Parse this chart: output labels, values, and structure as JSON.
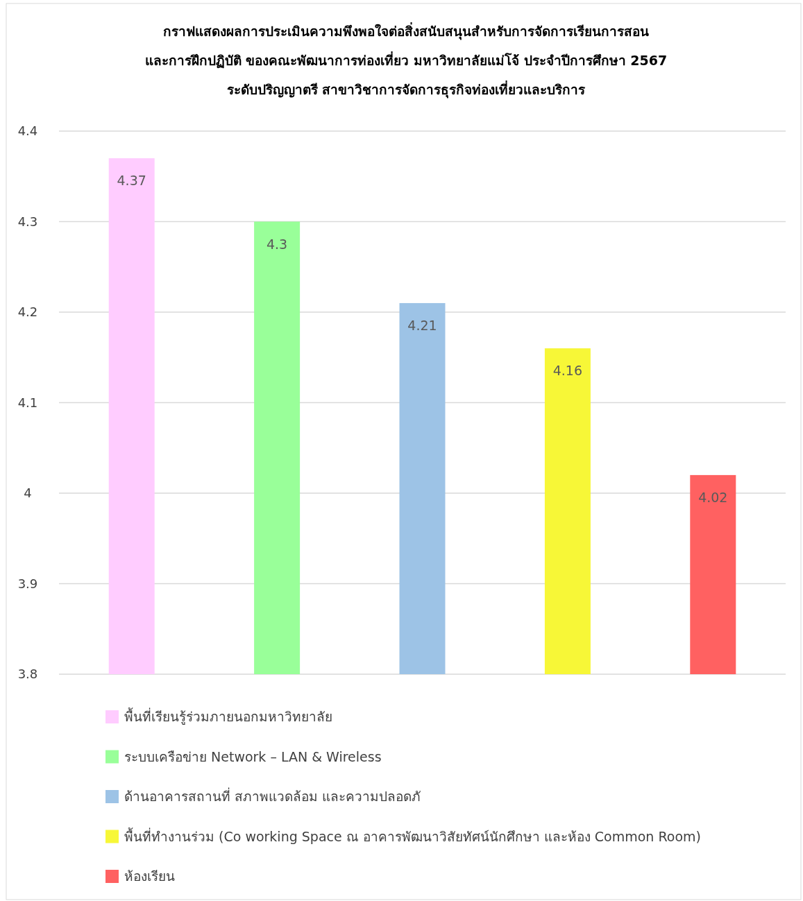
{
  "chart_data": {
    "type": "bar",
    "title": "กราฟแสดงผลการประเมินความพึงพอใจต่อสิ่งสนับสนุนสำหรับการจัดการเรียนการสอน\nและการฝึกปฏิบัติ ของคณะพัฒนาการท่องเที่ยว มหาวิทยาลัยแม่โจ้ ประจำปีการศึกษา 2567\nระดับปริญญาตรี สาขาวิชาการจัดการธุรกิจท่องเที่ยวและบริการ",
    "categories": [
      null,
      null,
      null,
      null,
      null
    ],
    "series": [
      {
        "name": "พื้นที่เรียนรู้ร่วมภายนอกมหาวิทยาลัย",
        "color": "#ffccff",
        "values": [
          4.37,
          null,
          null,
          null,
          null
        ]
      },
      {
        "name": "ระบบเครือข่าย Network – LAN & Wireless",
        "color": "#99ff99",
        "values": [
          null,
          4.3,
          null,
          null,
          null
        ]
      },
      {
        "name": "ด้านอาคารสถานที่ สภาพแวดล้อม และความปลอดภั",
        "color": "#9dc3e6",
        "values": [
          null,
          null,
          4.21,
          null,
          null
        ]
      },
      {
        "name": "พื้นที่ทำงานร่วม (Co working Space ณ อาคารพัฒนาวิสัยทัศน์นักศึกษา และห้อง Common Room)",
        "color": "#f7f737",
        "values": [
          null,
          null,
          null,
          4.16,
          null
        ]
      },
      {
        "name": "ห้องเรียน",
        "color": "#ff6161",
        "values": [
          null,
          null,
          null,
          null,
          4.02
        ]
      }
    ],
    "stacked": true,
    "ylim": [
      3.8,
      4.4
    ],
    "yticks": [
      3.8,
      3.9,
      4,
      4.1,
      4.2,
      4.3,
      4.4
    ],
    "grid": "y",
    "data_labels": true,
    "legend": "bottom",
    "tick_labels": "y"
  }
}
